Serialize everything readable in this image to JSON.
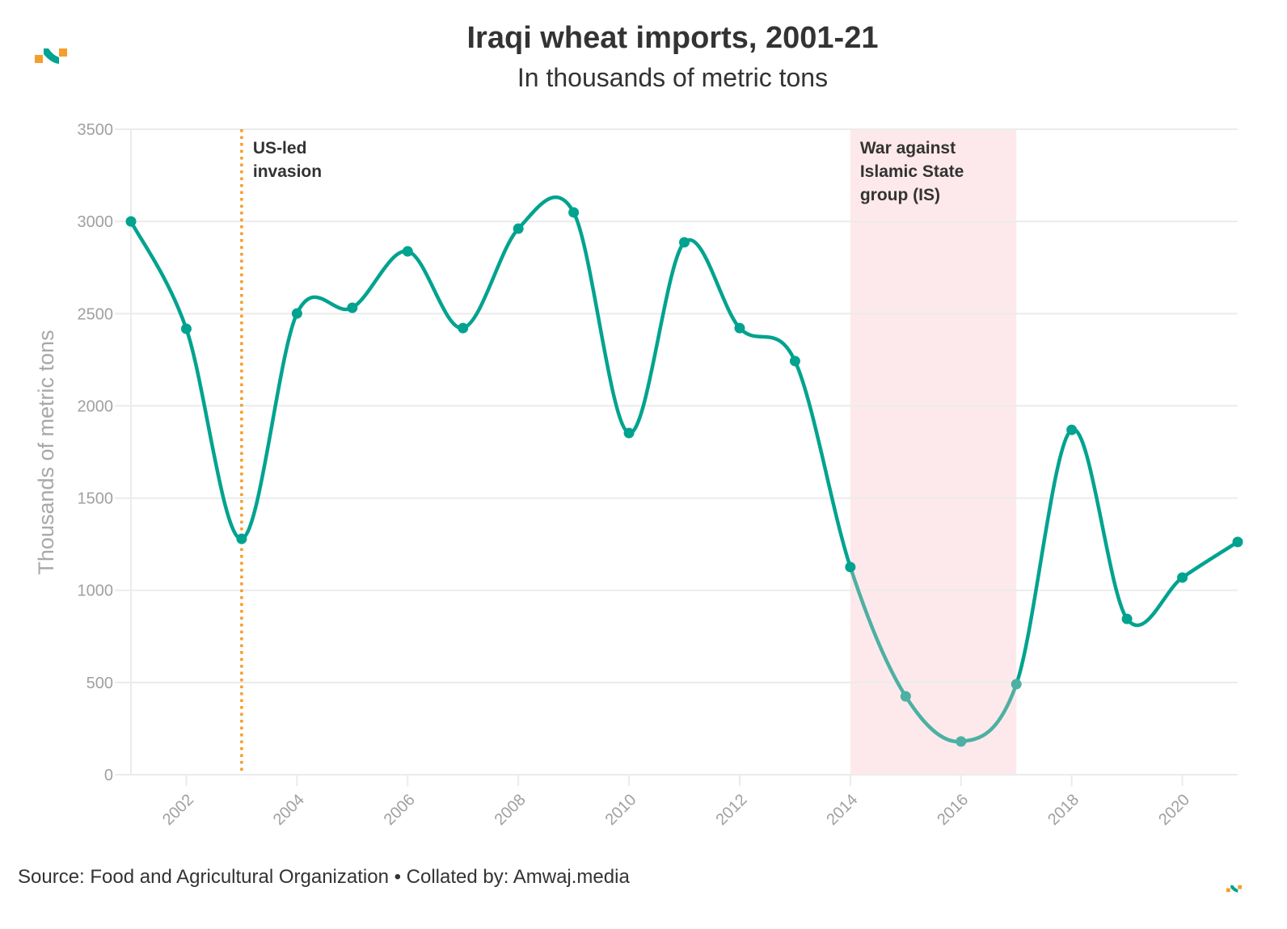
{
  "header": {
    "title": "Iraqi wheat imports, 2001-21",
    "subtitle": "In thousands of metric tons"
  },
  "footer": {
    "source": "Source: Food and Agricultural Organization • Collated by: Amwaj.media"
  },
  "logo": {
    "icon": "amwaj-logo-icon"
  },
  "colors": {
    "line": "#00a38f",
    "line_highlighted": "#4db0a3",
    "invasion_line": "#f59e2c",
    "war_band": "#fde9eb",
    "grid": "#ebebeb",
    "text": "#333333",
    "axis_text": "#a0a0a0"
  },
  "chart_data": {
    "type": "line",
    "title": "Iraqi wheat imports, 2001-21",
    "subtitle": "In thousands of metric tons",
    "xlabel": "",
    "ylabel": "Thousands of metric tons",
    "x": [
      2001,
      2002,
      2003,
      2004,
      2005,
      2006,
      2007,
      2008,
      2009,
      2010,
      2011,
      2012,
      2013,
      2014,
      2015,
      2016,
      2017,
      2018,
      2019,
      2020,
      2021
    ],
    "series": [
      {
        "name": "Wheat imports",
        "values": [
          3000,
          2418,
          1279,
          2501,
          2532,
          2838,
          2422,
          2961,
          3049,
          1853,
          2887,
          2422,
          2243,
          1126,
          425,
          180,
          491,
          1870,
          845,
          1069,
          1262
        ]
      }
    ],
    "xlim": [
      2001,
      2021
    ],
    "ylim": [
      0,
      3500
    ],
    "y_ticks": [
      "0",
      "500",
      "1000",
      "1500",
      "2000",
      "2500",
      "3000",
      "3500"
    ],
    "x_ticks": [
      "2002",
      "2004",
      "2006",
      "2008",
      "2010",
      "2012",
      "2014",
      "2016",
      "2018",
      "2020"
    ],
    "grid": true,
    "legend": "none",
    "annotations": [
      {
        "type": "vline",
        "x": 2003,
        "style": "dotted",
        "lines": [
          "US-led",
          "invasion"
        ]
      },
      {
        "type": "band",
        "x_start": 2014,
        "x_end": 2017,
        "lines": [
          "War against",
          "Islamic State",
          "group (IS)"
        ]
      }
    ]
  }
}
